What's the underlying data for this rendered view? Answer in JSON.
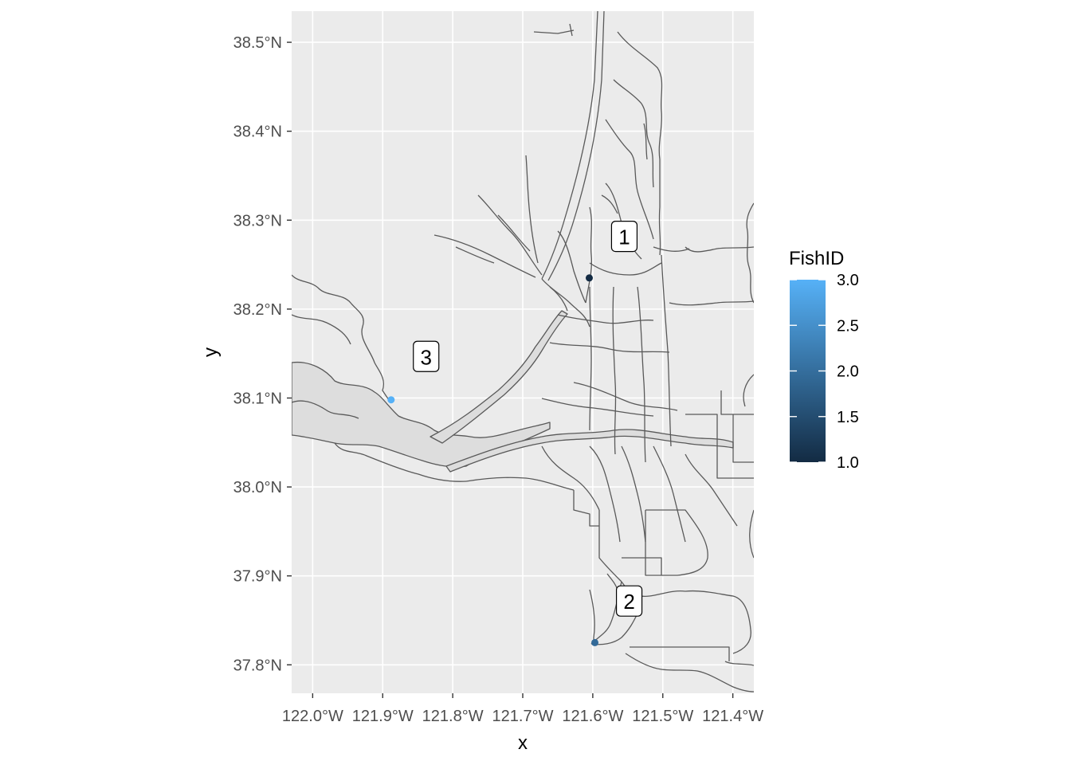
{
  "chart_data": {
    "type": "map-scatter",
    "xlabel": "x",
    "ylabel": "y",
    "x_ticks": [
      "122.0°W",
      "121.9°W",
      "121.8°W",
      "121.7°W",
      "121.6°W",
      "121.5°W",
      "121.4°W"
    ],
    "x_tick_values": [
      -122.0,
      -121.9,
      -121.8,
      -121.7,
      -121.6,
      -121.5,
      -121.4
    ],
    "y_ticks": [
      "38.5°N",
      "38.4°N",
      "38.3°N",
      "38.2°N",
      "38.1°N",
      "38.0°N",
      "37.9°N",
      "37.8°N"
    ],
    "y_tick_values": [
      38.5,
      38.4,
      38.3,
      38.2,
      38.1,
      38.0,
      37.9,
      37.8
    ],
    "xlim": [
      -122.03,
      -121.37
    ],
    "ylim": [
      37.768,
      38.535
    ],
    "grid": true,
    "legend": {
      "title": "FishID",
      "position": "right",
      "ticks": [
        "3.0",
        "2.5",
        "2.0",
        "1.5",
        "1.0"
      ],
      "tick_values": [
        3.0,
        2.5,
        2.0,
        1.5,
        1.0
      ],
      "range": [
        1.0,
        3.0
      ],
      "color_low": "#132b43",
      "color_high": "#56b1f7"
    },
    "points": [
      {
        "fish_id": 1,
        "lon": -121.605,
        "lat": 38.235,
        "color": "#132b43"
      },
      {
        "fish_id": 2,
        "lon": -121.597,
        "lat": 37.825,
        "color": "#336a98"
      },
      {
        "fish_id": 3,
        "lon": -121.888,
        "lat": 38.098,
        "color": "#56b1f7"
      }
    ],
    "labels": [
      {
        "text": "1",
        "lon": -121.555,
        "lat": 38.28
      },
      {
        "text": "2",
        "lon": -121.548,
        "lat": 37.87
      },
      {
        "text": "3",
        "lon": -121.838,
        "lat": 38.145
      }
    ],
    "colors": {
      "panel_background": "#ebebeb",
      "grid": "#ffffff",
      "water_fill": "#dddddd",
      "water_stroke": "#595959"
    }
  }
}
